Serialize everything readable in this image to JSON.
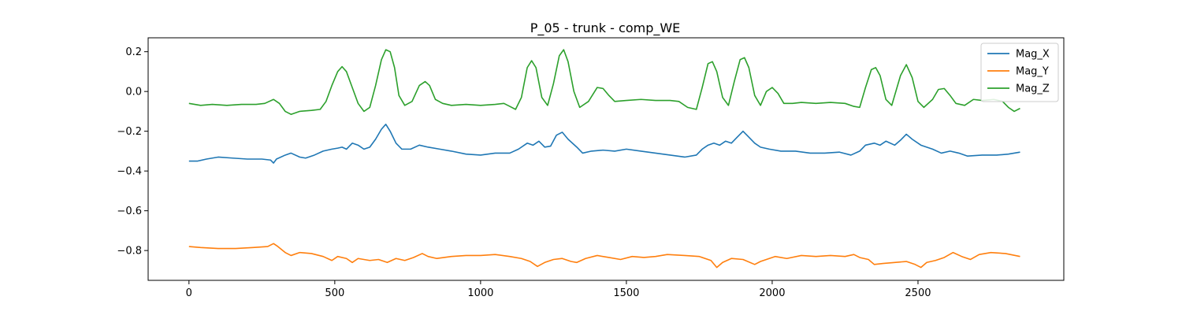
{
  "chart_data": {
    "type": "line",
    "title": "P_05 - trunk - comp_WE",
    "xlabel": "",
    "ylabel": "",
    "xlim": [
      -140,
      3000
    ],
    "ylim": [
      -0.95,
      0.27
    ],
    "xticks": [
      0,
      500,
      1000,
      1500,
      2000,
      2500
    ],
    "xtick_labels": [
      "0",
      "500",
      "1000",
      "1500",
      "2000",
      "2500"
    ],
    "yticks": [
      -0.8,
      -0.6,
      -0.4,
      -0.2,
      0.0,
      0.2
    ],
    "ytick_labels": [
      "−0.8",
      "−0.6",
      "−0.4",
      "−0.2",
      "0.0",
      "0.2"
    ],
    "grid": false,
    "legend_position": "upper right",
    "series": [
      {
        "name": "Mag_X",
        "color": "#1f77b4",
        "points": [
          [
            0,
            -0.35
          ],
          [
            30,
            -0.35
          ],
          [
            60,
            -0.34
          ],
          [
            100,
            -0.33
          ],
          [
            150,
            -0.335
          ],
          [
            200,
            -0.34
          ],
          [
            250,
            -0.34
          ],
          [
            280,
            -0.345
          ],
          [
            290,
            -0.36
          ],
          [
            300,
            -0.34
          ],
          [
            330,
            -0.32
          ],
          [
            350,
            -0.31
          ],
          [
            380,
            -0.33
          ],
          [
            400,
            -0.335
          ],
          [
            430,
            -0.32
          ],
          [
            460,
            -0.3
          ],
          [
            490,
            -0.29
          ],
          [
            510,
            -0.285
          ],
          [
            525,
            -0.28
          ],
          [
            540,
            -0.29
          ],
          [
            560,
            -0.26
          ],
          [
            580,
            -0.27
          ],
          [
            600,
            -0.29
          ],
          [
            620,
            -0.28
          ],
          [
            640,
            -0.24
          ],
          [
            660,
            -0.19
          ],
          [
            675,
            -0.165
          ],
          [
            690,
            -0.2
          ],
          [
            710,
            -0.26
          ],
          [
            730,
            -0.29
          ],
          [
            760,
            -0.29
          ],
          [
            790,
            -0.27
          ],
          [
            820,
            -0.28
          ],
          [
            860,
            -0.29
          ],
          [
            900,
            -0.3
          ],
          [
            950,
            -0.315
          ],
          [
            1000,
            -0.32
          ],
          [
            1050,
            -0.31
          ],
          [
            1100,
            -0.31
          ],
          [
            1130,
            -0.29
          ],
          [
            1160,
            -0.26
          ],
          [
            1180,
            -0.27
          ],
          [
            1200,
            -0.25
          ],
          [
            1220,
            -0.28
          ],
          [
            1240,
            -0.275
          ],
          [
            1260,
            -0.22
          ],
          [
            1280,
            -0.205
          ],
          [
            1300,
            -0.24
          ],
          [
            1330,
            -0.28
          ],
          [
            1350,
            -0.31
          ],
          [
            1380,
            -0.3
          ],
          [
            1420,
            -0.295
          ],
          [
            1460,
            -0.3
          ],
          [
            1500,
            -0.29
          ],
          [
            1550,
            -0.3
          ],
          [
            1600,
            -0.31
          ],
          [
            1650,
            -0.32
          ],
          [
            1700,
            -0.33
          ],
          [
            1740,
            -0.32
          ],
          [
            1760,
            -0.29
          ],
          [
            1780,
            -0.27
          ],
          [
            1800,
            -0.26
          ],
          [
            1820,
            -0.27
          ],
          [
            1840,
            -0.25
          ],
          [
            1860,
            -0.26
          ],
          [
            1880,
            -0.23
          ],
          [
            1900,
            -0.2
          ],
          [
            1920,
            -0.23
          ],
          [
            1940,
            -0.26
          ],
          [
            1960,
            -0.28
          ],
          [
            1990,
            -0.29
          ],
          [
            2030,
            -0.3
          ],
          [
            2080,
            -0.3
          ],
          [
            2130,
            -0.31
          ],
          [
            2180,
            -0.31
          ],
          [
            2230,
            -0.305
          ],
          [
            2270,
            -0.32
          ],
          [
            2300,
            -0.3
          ],
          [
            2320,
            -0.27
          ],
          [
            2350,
            -0.26
          ],
          [
            2370,
            -0.27
          ],
          [
            2390,
            -0.25
          ],
          [
            2420,
            -0.27
          ],
          [
            2440,
            -0.245
          ],
          [
            2460,
            -0.215
          ],
          [
            2480,
            -0.24
          ],
          [
            2510,
            -0.27
          ],
          [
            2550,
            -0.29
          ],
          [
            2580,
            -0.31
          ],
          [
            2610,
            -0.3
          ],
          [
            2640,
            -0.31
          ],
          [
            2670,
            -0.325
          ],
          [
            2720,
            -0.32
          ],
          [
            2770,
            -0.32
          ],
          [
            2810,
            -0.315
          ],
          [
            2850,
            -0.305
          ]
        ]
      },
      {
        "name": "Mag_Y",
        "color": "#ff7f0e",
        "points": [
          [
            0,
            -0.78
          ],
          [
            40,
            -0.785
          ],
          [
            100,
            -0.79
          ],
          [
            160,
            -0.79
          ],
          [
            220,
            -0.785
          ],
          [
            270,
            -0.78
          ],
          [
            290,
            -0.765
          ],
          [
            305,
            -0.78
          ],
          [
            330,
            -0.81
          ],
          [
            350,
            -0.825
          ],
          [
            380,
            -0.81
          ],
          [
            420,
            -0.815
          ],
          [
            460,
            -0.83
          ],
          [
            490,
            -0.85
          ],
          [
            510,
            -0.83
          ],
          [
            540,
            -0.84
          ],
          [
            560,
            -0.86
          ],
          [
            580,
            -0.84
          ],
          [
            620,
            -0.85
          ],
          [
            650,
            -0.845
          ],
          [
            680,
            -0.86
          ],
          [
            710,
            -0.84
          ],
          [
            740,
            -0.85
          ],
          [
            770,
            -0.835
          ],
          [
            800,
            -0.815
          ],
          [
            820,
            -0.83
          ],
          [
            850,
            -0.84
          ],
          [
            900,
            -0.83
          ],
          [
            950,
            -0.825
          ],
          [
            1000,
            -0.825
          ],
          [
            1050,
            -0.82
          ],
          [
            1100,
            -0.83
          ],
          [
            1140,
            -0.84
          ],
          [
            1170,
            -0.855
          ],
          [
            1195,
            -0.88
          ],
          [
            1220,
            -0.86
          ],
          [
            1250,
            -0.845
          ],
          [
            1280,
            -0.84
          ],
          [
            1310,
            -0.855
          ],
          [
            1330,
            -0.86
          ],
          [
            1360,
            -0.84
          ],
          [
            1400,
            -0.825
          ],
          [
            1440,
            -0.835
          ],
          [
            1480,
            -0.845
          ],
          [
            1520,
            -0.83
          ],
          [
            1560,
            -0.835
          ],
          [
            1600,
            -0.83
          ],
          [
            1640,
            -0.82
          ],
          [
            1700,
            -0.825
          ],
          [
            1750,
            -0.83
          ],
          [
            1790,
            -0.85
          ],
          [
            1810,
            -0.885
          ],
          [
            1830,
            -0.86
          ],
          [
            1860,
            -0.84
          ],
          [
            1900,
            -0.845
          ],
          [
            1940,
            -0.87
          ],
          [
            1960,
            -0.855
          ],
          [
            1990,
            -0.84
          ],
          [
            2010,
            -0.83
          ],
          [
            2050,
            -0.84
          ],
          [
            2100,
            -0.825
          ],
          [
            2150,
            -0.83
          ],
          [
            2200,
            -0.825
          ],
          [
            2250,
            -0.83
          ],
          [
            2280,
            -0.82
          ],
          [
            2300,
            -0.835
          ],
          [
            2330,
            -0.845
          ],
          [
            2350,
            -0.87
          ],
          [
            2380,
            -0.865
          ],
          [
            2420,
            -0.86
          ],
          [
            2460,
            -0.855
          ],
          [
            2490,
            -0.87
          ],
          [
            2510,
            -0.885
          ],
          [
            2530,
            -0.86
          ],
          [
            2560,
            -0.85
          ],
          [
            2590,
            -0.835
          ],
          [
            2620,
            -0.81
          ],
          [
            2650,
            -0.83
          ],
          [
            2680,
            -0.845
          ],
          [
            2710,
            -0.82
          ],
          [
            2750,
            -0.81
          ],
          [
            2800,
            -0.815
          ],
          [
            2850,
            -0.83
          ]
        ]
      },
      {
        "name": "Mag_Z",
        "color": "#2ca02c",
        "points": [
          [
            0,
            -0.06
          ],
          [
            40,
            -0.07
          ],
          [
            80,
            -0.065
          ],
          [
            130,
            -0.07
          ],
          [
            180,
            -0.065
          ],
          [
            230,
            -0.065
          ],
          [
            260,
            -0.06
          ],
          [
            290,
            -0.04
          ],
          [
            310,
            -0.06
          ],
          [
            330,
            -0.1
          ],
          [
            350,
            -0.115
          ],
          [
            380,
            -0.1
          ],
          [
            420,
            -0.095
          ],
          [
            450,
            -0.09
          ],
          [
            470,
            -0.05
          ],
          [
            490,
            0.03
          ],
          [
            510,
            0.1
          ],
          [
            525,
            0.125
          ],
          [
            540,
            0.1
          ],
          [
            560,
            0.02
          ],
          [
            580,
            -0.06
          ],
          [
            600,
            -0.1
          ],
          [
            620,
            -0.08
          ],
          [
            640,
            0.03
          ],
          [
            660,
            0.16
          ],
          [
            675,
            0.21
          ],
          [
            690,
            0.2
          ],
          [
            705,
            0.12
          ],
          [
            720,
            -0.02
          ],
          [
            740,
            -0.07
          ],
          [
            765,
            -0.05
          ],
          [
            790,
            0.03
          ],
          [
            810,
            0.05
          ],
          [
            825,
            0.03
          ],
          [
            845,
            -0.04
          ],
          [
            870,
            -0.06
          ],
          [
            900,
            -0.07
          ],
          [
            950,
            -0.065
          ],
          [
            1000,
            -0.07
          ],
          [
            1050,
            -0.065
          ],
          [
            1080,
            -0.06
          ],
          [
            1100,
            -0.075
          ],
          [
            1120,
            -0.09
          ],
          [
            1140,
            -0.03
          ],
          [
            1160,
            0.12
          ],
          [
            1175,
            0.155
          ],
          [
            1190,
            0.12
          ],
          [
            1210,
            -0.03
          ],
          [
            1230,
            -0.07
          ],
          [
            1250,
            0.04
          ],
          [
            1270,
            0.18
          ],
          [
            1285,
            0.21
          ],
          [
            1300,
            0.15
          ],
          [
            1320,
            0.0
          ],
          [
            1340,
            -0.08
          ],
          [
            1370,
            -0.05
          ],
          [
            1400,
            0.02
          ],
          [
            1420,
            0.015
          ],
          [
            1440,
            -0.02
          ],
          [
            1460,
            -0.05
          ],
          [
            1500,
            -0.045
          ],
          [
            1550,
            -0.04
          ],
          [
            1600,
            -0.045
          ],
          [
            1650,
            -0.045
          ],
          [
            1680,
            -0.05
          ],
          [
            1710,
            -0.08
          ],
          [
            1740,
            -0.09
          ],
          [
            1760,
            0.02
          ],
          [
            1780,
            0.14
          ],
          [
            1795,
            0.15
          ],
          [
            1810,
            0.1
          ],
          [
            1830,
            -0.03
          ],
          [
            1850,
            -0.07
          ],
          [
            1870,
            0.05
          ],
          [
            1890,
            0.16
          ],
          [
            1905,
            0.17
          ],
          [
            1920,
            0.12
          ],
          [
            1940,
            -0.02
          ],
          [
            1960,
            -0.07
          ],
          [
            1980,
            0.0
          ],
          [
            2000,
            0.02
          ],
          [
            2020,
            -0.01
          ],
          [
            2040,
            -0.06
          ],
          [
            2070,
            -0.06
          ],
          [
            2100,
            -0.055
          ],
          [
            2150,
            -0.06
          ],
          [
            2200,
            -0.055
          ],
          [
            2250,
            -0.06
          ],
          [
            2280,
            -0.075
          ],
          [
            2300,
            -0.08
          ],
          [
            2320,
            0.02
          ],
          [
            2340,
            0.11
          ],
          [
            2355,
            0.12
          ],
          [
            2370,
            0.08
          ],
          [
            2390,
            -0.04
          ],
          [
            2410,
            -0.07
          ],
          [
            2440,
            0.08
          ],
          [
            2460,
            0.135
          ],
          [
            2480,
            0.07
          ],
          [
            2500,
            -0.05
          ],
          [
            2520,
            -0.08
          ],
          [
            2550,
            -0.04
          ],
          [
            2570,
            0.01
          ],
          [
            2590,
            0.015
          ],
          [
            2610,
            -0.02
          ],
          [
            2630,
            -0.06
          ],
          [
            2660,
            -0.07
          ],
          [
            2690,
            -0.04
          ],
          [
            2720,
            -0.045
          ],
          [
            2760,
            -0.04
          ],
          [
            2790,
            -0.05
          ],
          [
            2810,
            -0.08
          ],
          [
            2830,
            -0.1
          ],
          [
            2850,
            -0.085
          ]
        ]
      }
    ]
  }
}
